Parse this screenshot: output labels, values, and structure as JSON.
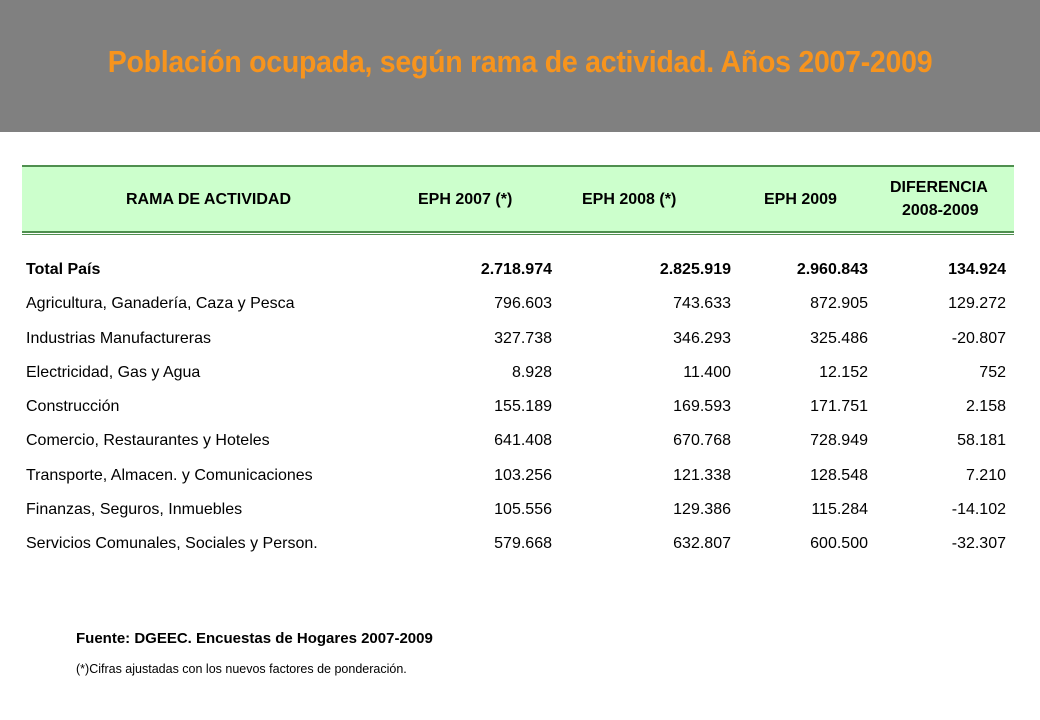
{
  "title": "Población ocupada, según rama de actividad. Años 2007-2009",
  "table": {
    "headers": {
      "rama": "RAMA DE ACTIVIDAD",
      "eph2007": "EPH 2007 (*)",
      "eph2008": "EPH 2008 (*)",
      "eph2009": "EPH 2009",
      "diferencia_line1": "DIFERENCIA",
      "diferencia_line2": "2008-2009"
    },
    "rows": [
      {
        "rama": "Total País",
        "eph2007": "2.718.974",
        "eph2008": "2.825.919",
        "eph2009": "2.960.843",
        "diferencia": "134.924"
      },
      {
        "rama": "Agricultura, Ganadería, Caza y Pesca",
        "eph2007": "796.603",
        "eph2008": "743.633",
        "eph2009": "872.905",
        "diferencia": "129.272"
      },
      {
        "rama": "Industrias Manufactureras",
        "eph2007": "327.738",
        "eph2008": "346.293",
        "eph2009": "325.486",
        "diferencia": "-20.807"
      },
      {
        "rama": "Electricidad, Gas y Agua",
        "eph2007": "8.928",
        "eph2008": "11.400",
        "eph2009": "12.152",
        "diferencia": "752"
      },
      {
        "rama": "Construcción",
        "eph2007": "155.189",
        "eph2008": "169.593",
        "eph2009": "171.751",
        "diferencia": "2.158"
      },
      {
        "rama": "Comercio, Restaurantes y Hoteles",
        "eph2007": "641.408",
        "eph2008": "670.768",
        "eph2009": "728.949",
        "diferencia": "58.181"
      },
      {
        "rama": "Transporte, Almacen. y Comunicaciones",
        "eph2007": "103.256",
        "eph2008": "121.338",
        "eph2009": "128.548",
        "diferencia": "7.210"
      },
      {
        "rama": "Finanzas, Seguros, Inmuebles",
        "eph2007": "105.556",
        "eph2008": "129.386",
        "eph2009": "115.284",
        "diferencia": "-14.102"
      },
      {
        "rama": "Servicios Comunales, Sociales y Person.",
        "eph2007": "579.668",
        "eph2008": "632.807",
        "eph2009": "600.500",
        "diferencia": "-32.307"
      }
    ]
  },
  "source": "Fuente: DGEEC. Encuestas de Hogares 2007-2009",
  "note": "(*)Cifras ajustadas con los nuevos factores de ponderación.",
  "colors": {
    "header_band": "#808080",
    "title": "#f7941d",
    "table_header_bg": "#ccffcc",
    "table_rule": "#4f8f4f"
  }
}
